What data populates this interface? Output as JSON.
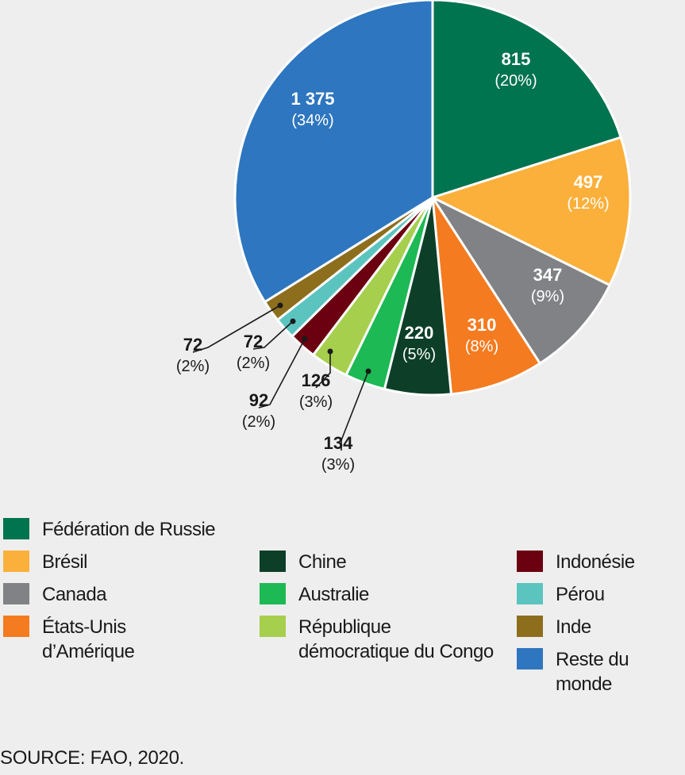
{
  "chart_data": {
    "type": "pie",
    "title": "",
    "start_angle_deg": 0,
    "direction": "clockwise",
    "slices": [
      {
        "name": "Fédération de Russie",
        "value": 815,
        "value_label": "815",
        "pct_label": "(20%)",
        "color": "#00734f"
      },
      {
        "name": "Brésil",
        "value": 497,
        "value_label": "497",
        "pct_label": "(12%)",
        "color": "#fbb03b"
      },
      {
        "name": "Canada",
        "value": 347,
        "value_label": "347",
        "pct_label": "(9%)",
        "color": "#808285"
      },
      {
        "name": "États-Unis d’Amérique",
        "value": 310,
        "value_label": "310",
        "pct_label": "(8%)",
        "color": "#f47b20"
      },
      {
        "name": "Chine",
        "value": 220,
        "value_label": "220",
        "pct_label": "(5%)",
        "color": "#0d3f28"
      },
      {
        "name": "Australie",
        "value": 134,
        "value_label": "134",
        "pct_label": "(3%)",
        "color": "#1db954"
      },
      {
        "name": "République démocratique du Congo",
        "value": 126,
        "value_label": "126",
        "pct_label": "(3%)",
        "color": "#a6cf4d"
      },
      {
        "name": "Indonésie",
        "value": 92,
        "value_label": "92",
        "pct_label": "(2%)",
        "color": "#6b0010"
      },
      {
        "name": "Pérou",
        "value": 72,
        "value_label": "72",
        "pct_label": "(2%)",
        "color": "#5bc4bf"
      },
      {
        "name": "Inde",
        "value": 72,
        "value_label": "72",
        "pct_label": "(2%)",
        "color": "#8d6e1d"
      },
      {
        "name": "Reste du monde",
        "value": 1375,
        "value_label": "1 375",
        "pct_label": "(34%)",
        "color": "#2e76bf"
      }
    ]
  },
  "legend": [
    {
      "text": "Fédération de Russie",
      "color": "#00734f"
    },
    {
      "text": "Brésil",
      "color": "#fbb03b"
    },
    {
      "text": "Canada",
      "color": "#808285"
    },
    {
      "text": "États-Unis\nd’Amérique",
      "color": "#f47b20"
    },
    {
      "text": "Chine",
      "color": "#0d3f28"
    },
    {
      "text": "Australie",
      "color": "#1db954"
    },
    {
      "text": "République\ndémocratique du Congo",
      "color": "#a6cf4d"
    },
    {
      "text": "Indonésie",
      "color": "#6b0010"
    },
    {
      "text": "Pérou",
      "color": "#5bc4bf"
    },
    {
      "text": "Inde",
      "color": "#8d6e1d"
    },
    {
      "text": "Reste du monde",
      "color": "#2e76bf"
    }
  ],
  "source": "SOURCE: FAO, 2020."
}
